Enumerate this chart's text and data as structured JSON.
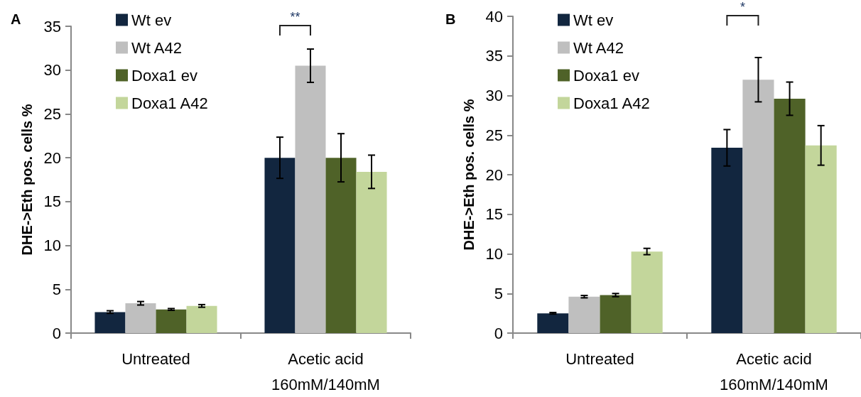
{
  "chart_data": [
    {
      "type": "bar",
      "title": "A",
      "ylabel": "DHE->Eth pos. cells %",
      "categories": [
        "Untreated",
        "Acetic acid\n160mM/140mM"
      ],
      "series": [
        {
          "name": "Wt ev",
          "color": "#12263f",
          "values": [
            2.4,
            20.0
          ],
          "errors": [
            0.15,
            2.35
          ]
        },
        {
          "name": "Wt A42",
          "color": "#bfbfbf",
          "values": [
            3.4,
            30.5
          ],
          "errors": [
            0.2,
            1.9
          ]
        },
        {
          "name": "Doxa1 ev",
          "color": "#4f6228",
          "values": [
            2.7,
            20.0
          ],
          "errors": [
            0.1,
            2.75
          ]
        },
        {
          "name": "Doxa1 A42",
          "color": "#c3d69b",
          "values": [
            3.1,
            18.4
          ],
          "errors": [
            0.15,
            1.9
          ]
        }
      ],
      "ylim": [
        0,
        35
      ],
      "yticks": [
        0,
        5,
        10,
        15,
        20,
        25,
        30,
        35
      ],
      "grid": false,
      "legend": "top left",
      "annotations": [
        "**"
      ]
    },
    {
      "type": "bar",
      "title": "B",
      "ylabel": "DHE->Eth pos. cells %",
      "categories": [
        "Untreated",
        "Acetic acid\n160mM/140mM"
      ],
      "series": [
        {
          "name": "Wt ev",
          "color": "#12263f",
          "values": [
            2.5,
            23.4
          ],
          "errors": [
            0.1,
            2.3
          ]
        },
        {
          "name": "Wt A42",
          "color": "#bfbfbf",
          "values": [
            4.6,
            32.0
          ],
          "errors": [
            0.15,
            2.8
          ]
        },
        {
          "name": "Doxa1 ev",
          "color": "#4f6228",
          "values": [
            4.8,
            29.6
          ],
          "errors": [
            0.2,
            2.1
          ]
        },
        {
          "name": "Doxa1 A42",
          "color": "#c3d69b",
          "values": [
            10.3,
            23.7
          ],
          "errors": [
            0.4,
            2.5
          ]
        }
      ],
      "ylim": [
        0,
        40
      ],
      "yticks": [
        0,
        5,
        10,
        15,
        20,
        25,
        30,
        35,
        40
      ],
      "grid": false,
      "legend": "top left",
      "annotations": [
        "*"
      ]
    }
  ]
}
